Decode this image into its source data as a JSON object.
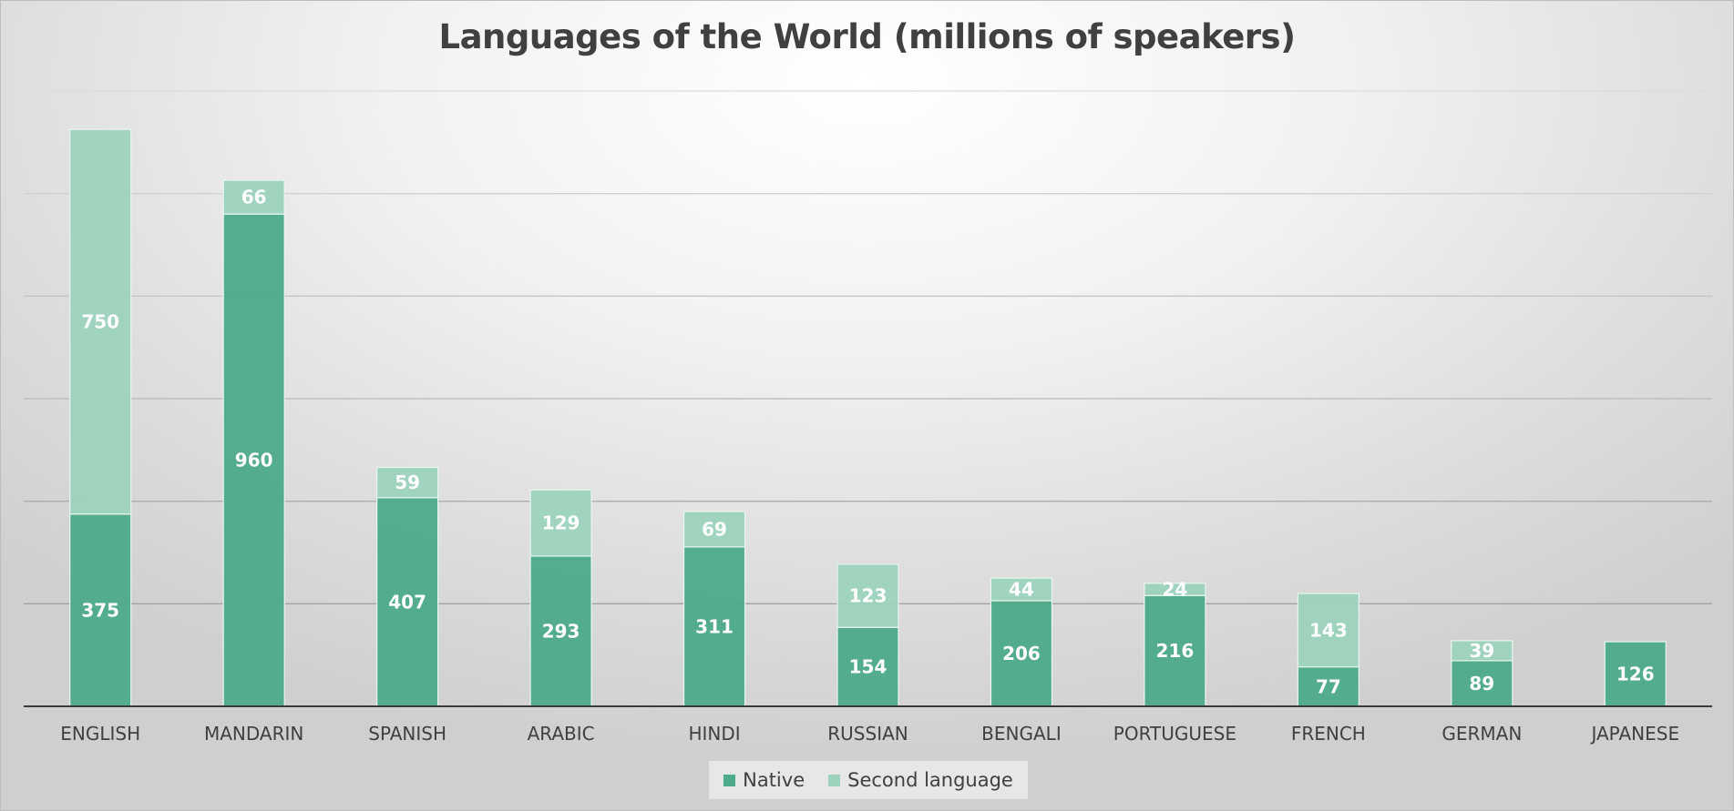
{
  "chart_data": {
    "type": "bar",
    "stacked": true,
    "title": "Languages of the World (millions of speakers)",
    "categories": [
      "ENGLISH",
      "MANDARIN",
      "SPANISH",
      "ARABIC",
      "HINDI",
      "RUSSIAN",
      "BENGALI",
      "PORTUGUESE",
      "FRENCH",
      "GERMAN",
      "JAPANESE"
    ],
    "series": [
      {
        "name": "Native",
        "color": "#4daa8a",
        "values": [
          375,
          960,
          407,
          293,
          311,
          154,
          206,
          216,
          77,
          89,
          126
        ]
      },
      {
        "name": "Second language",
        "color": "#9dd3bd",
        "values": [
          750,
          66,
          59,
          129,
          69,
          123,
          44,
          24,
          143,
          39,
          0
        ]
      }
    ],
    "ylim": [
      0,
      1200
    ],
    "yticks": [
      0,
      200,
      400,
      600,
      800,
      1000,
      1200
    ],
    "show_y_labels": false,
    "grid": true,
    "data_labels": true,
    "legend": {
      "position": "bottom"
    }
  }
}
